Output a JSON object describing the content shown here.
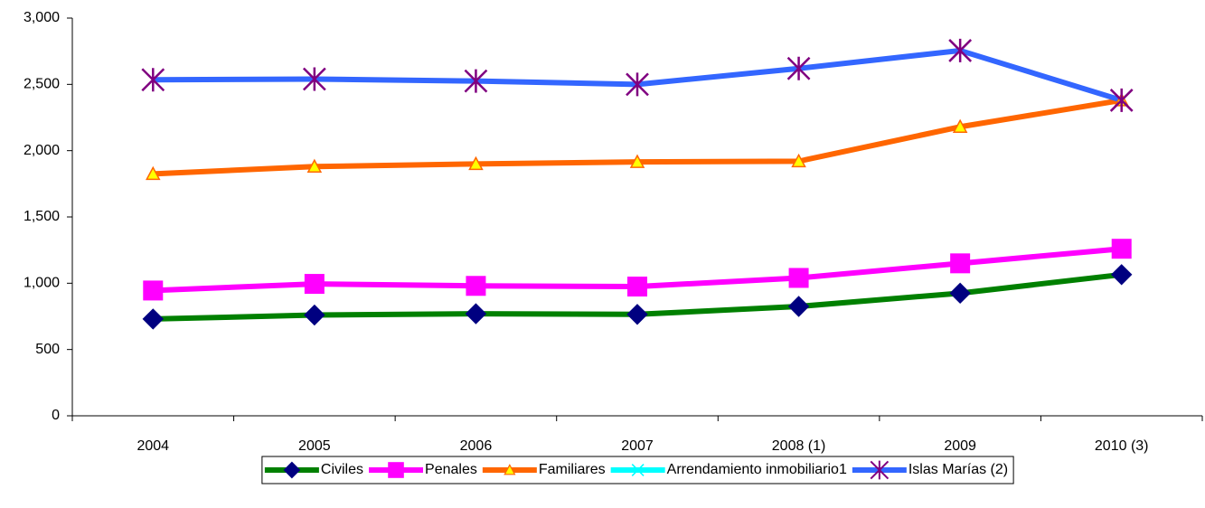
{
  "chart_data": {
    "type": "line",
    "categories": [
      "2004",
      "2005",
      "2006",
      "2007",
      "2008 (1)",
      "2009",
      "2010 (3)"
    ],
    "series": [
      {
        "name": "Civiles",
        "color": "#008000",
        "marker": "diamond",
        "marker_color": "#000080",
        "values": [
          730,
          760,
          770,
          765,
          825,
          925,
          1065
        ]
      },
      {
        "name": "Penales",
        "color": "#ff00ff",
        "marker": "square",
        "marker_color": "#ff00ff",
        "values": [
          945,
          995,
          980,
          975,
          1040,
          1150,
          1260
        ]
      },
      {
        "name": "Familiares",
        "color": "#ff6600",
        "marker": "triangle",
        "marker_color": "#ffff00",
        "values": [
          1825,
          1880,
          1900,
          1915,
          1920,
          2180,
          2380
        ]
      },
      {
        "name": "Arrendamiento inmobiliario1",
        "color": "#00ffff",
        "marker": "x",
        "marker_color": "#00ffff",
        "values": [
          null,
          null,
          null,
          null,
          null,
          null,
          null
        ]
      },
      {
        "name": "Islas Marías (2)",
        "color": "#3366ff",
        "marker": "star",
        "marker_color": "#800080",
        "values": [
          2535,
          2540,
          2525,
          2500,
          2620,
          2755,
          2380
        ]
      }
    ],
    "ylim": [
      0,
      3000
    ],
    "yticks": [
      0,
      500,
      {
        "value": 1000,
        "label": "1,000"
      },
      {
        "value": 1500,
        "label": "1,500"
      },
      {
        "value": 2000,
        "label": "2,000"
      },
      {
        "value": 2500,
        "label": "2,500"
      },
      {
        "value": 3000,
        "label": "3,000"
      }
    ],
    "grid": false,
    "legend": "bottom"
  }
}
